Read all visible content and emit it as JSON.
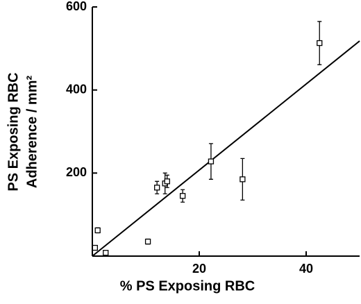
{
  "chart_data": {
    "type": "scatter",
    "xlabel": "% PS Exposing RBC",
    "ylabel": [
      "PS Exposing RBC",
      "Adherence / mm²"
    ],
    "x": [
      0.5,
      1,
      2.5,
      10.4,
      12.1,
      13.6,
      14,
      16.9,
      22.2,
      28.1,
      42.5
    ],
    "values": [
      20,
      62,
      8,
      35,
      165,
      175,
      180,
      145,
      228,
      185,
      513
    ],
    "errors": [
      null,
      6,
      null,
      6,
      15,
      25,
      15,
      15,
      43,
      50,
      52
    ],
    "fit": {
      "x": [
        0,
        50
      ],
      "y": [
        0,
        518
      ]
    },
    "color": "#000000",
    "xlim": [
      0,
      50
    ],
    "ylim": [
      0,
      600
    ],
    "xticks": [
      20,
      40
    ],
    "yticks": [
      200,
      400,
      600
    ]
  }
}
